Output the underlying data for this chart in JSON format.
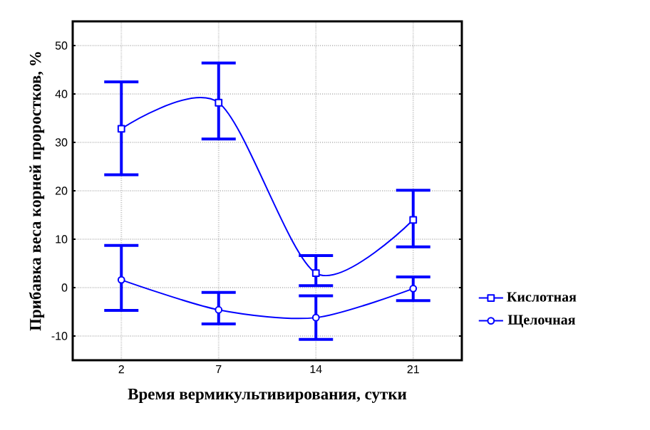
{
  "chart_data": {
    "type": "line",
    "xlabel": "Время вермикультивирования, сутки",
    "ylabel": "Прибавка веса корней проростков, %",
    "categories": [
      "2",
      "7",
      "14",
      "21"
    ],
    "series": [
      {
        "name": "Кислотная",
        "color": "#0000ff",
        "marker": "square",
        "values": [
          32.8,
          38.2,
          3.0,
          14.0
        ],
        "errors": [
          [
            23.3,
            42.5
          ],
          [
            30.7,
            46.4
          ],
          [
            0.4,
            6.6
          ],
          [
            8.4,
            20.1
          ]
        ]
      },
      {
        "name": "Щелочная",
        "color": "#0000ff",
        "marker": "circle",
        "values": [
          1.6,
          -4.6,
          -6.2,
          -0.2
        ],
        "errors": [
          [
            -4.7,
            8.7
          ],
          [
            -7.5,
            -1.0
          ],
          [
            -10.7,
            -1.7
          ],
          [
            -2.7,
            2.2
          ]
        ]
      }
    ],
    "ylim": [
      -15,
      55
    ],
    "yticks": [
      -10,
      0,
      10,
      20,
      30,
      40,
      50
    ],
    "grid": true,
    "legend": "right",
    "line_style": "solid"
  }
}
